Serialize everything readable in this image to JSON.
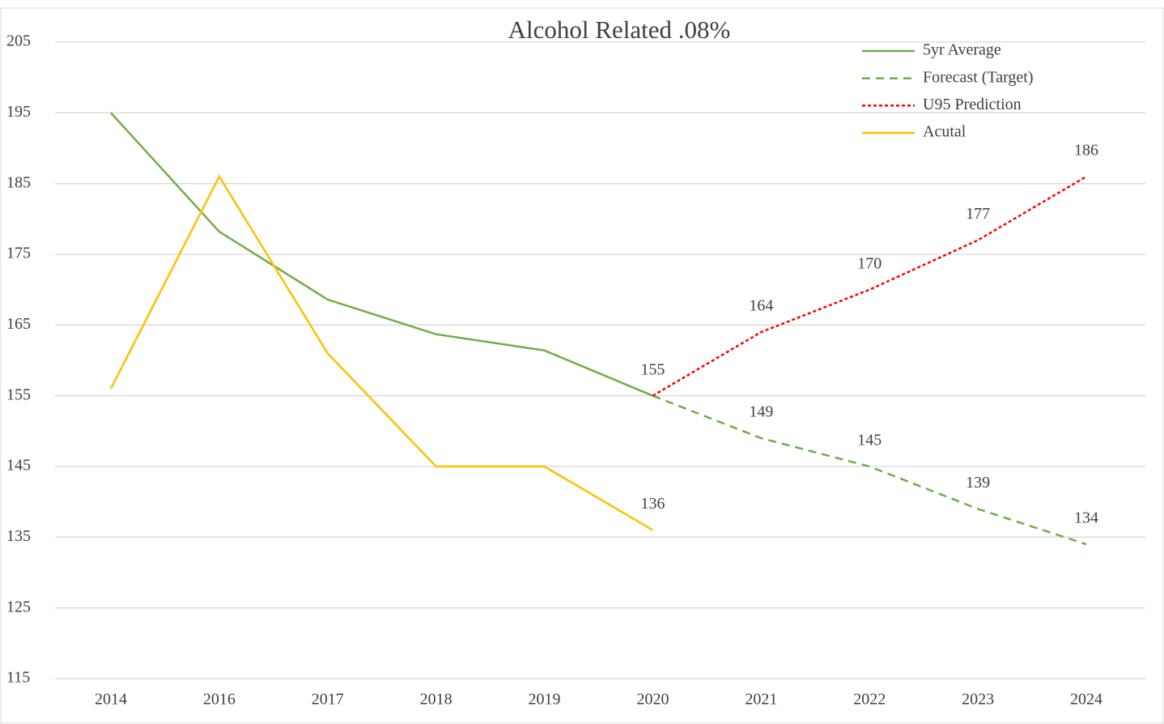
{
  "chart_data": {
    "type": "line",
    "title": "Alcohol Related .08%",
    "categories": [
      "2014",
      "2016",
      "2017",
      "2018",
      "2019",
      "2020",
      "2021",
      "2022",
      "2023",
      "2024"
    ],
    "series": [
      {
        "name": "5yr Average",
        "color": "#70ad47",
        "dash": "solid",
        "values": [
          195,
          178.2,
          168.6,
          163.7,
          161.4,
          155,
          null,
          null,
          null,
          null
        ]
      },
      {
        "name": "Forecast (Target)",
        "color": "#70ad47",
        "dash": "dashed",
        "values": [
          null,
          null,
          null,
          null,
          null,
          155,
          149,
          145,
          139,
          134
        ]
      },
      {
        "name": "U95 Prediction",
        "color": "#ff0000",
        "dash": "dotted",
        "values": [
          null,
          null,
          null,
          null,
          null,
          155,
          164,
          170,
          177,
          186
        ]
      },
      {
        "name": "Acutal",
        "color": "#ffc000",
        "dash": "solid",
        "values": [
          156,
          186,
          161,
          145,
          145,
          136,
          null,
          null,
          null,
          null
        ]
      }
    ],
    "ylim": [
      115,
      205
    ],
    "yticks": [
      115,
      125,
      135,
      145,
      155,
      165,
      175,
      185,
      195,
      205
    ],
    "grid": true,
    "legend": "top-right"
  }
}
